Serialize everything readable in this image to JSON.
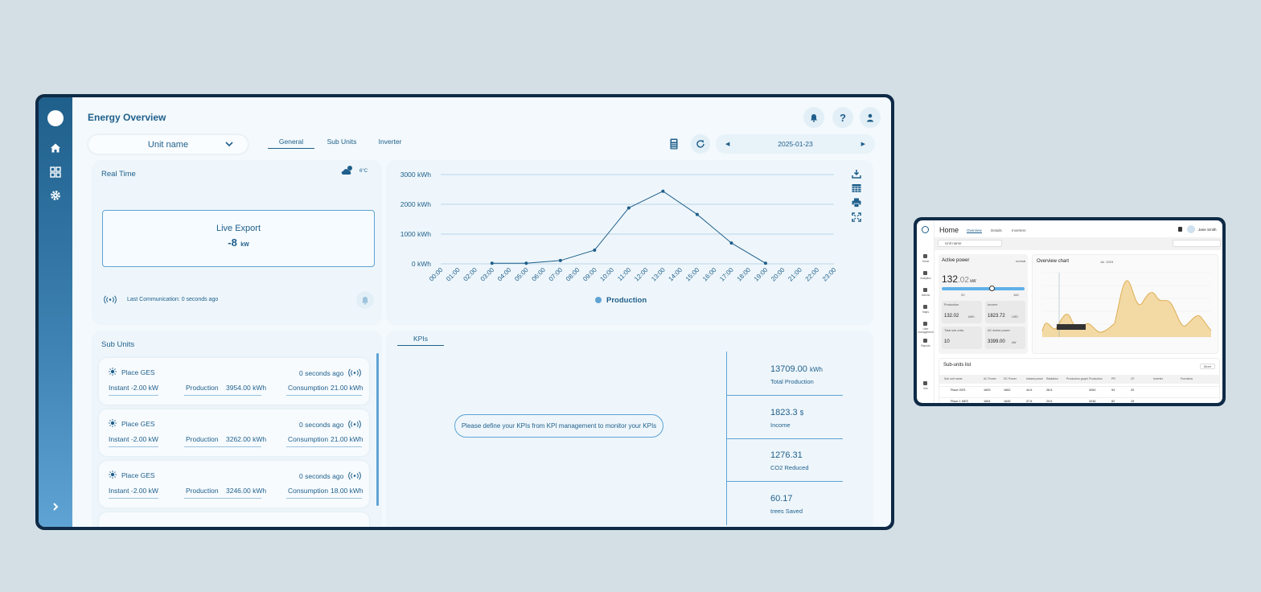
{
  "header": {
    "title": "Energy Overview",
    "unit_select": "Unit name",
    "tabs": [
      "General",
      "Sub Units",
      "Inverter"
    ],
    "date": "2025-01-23",
    "help_label": "?"
  },
  "realtime": {
    "title": "Real Time",
    "weather": "6°C",
    "live_label": "Live Export",
    "live_value": "-8",
    "live_unit": "kW",
    "last_comm": "Last Communication: 0 seconds ago"
  },
  "chart_data": {
    "type": "line",
    "x": [
      "00:00",
      "01:00",
      "02:00",
      "03:00",
      "04:00",
      "05:00",
      "06:00",
      "07:00",
      "08:00",
      "09:00",
      "10:00",
      "11:00",
      "12:00",
      "13:00",
      "14:00",
      "15:00",
      "16:00",
      "17:00",
      "18:00",
      "19:00",
      "20:00",
      "21:00",
      "22:00",
      "23:00"
    ],
    "series": [
      {
        "name": "Production",
        "values": [
          null,
          null,
          null,
          20,
          null,
          20,
          null,
          110,
          null,
          460,
          null,
          1880,
          null,
          2440,
          null,
          1660,
          null,
          700,
          null,
          20,
          null,
          null,
          null,
          null
        ]
      }
    ],
    "yticks": [
      "0 kWh",
      "1000 kWh",
      "2000 kWh",
      "3000 kWh"
    ],
    "ylim": [
      0,
      3000
    ],
    "color": "#1f5f8b",
    "legend": "bottom-center"
  },
  "sub_units": {
    "title": "Sub Units",
    "items": [
      {
        "name": "Place GES",
        "time": "0 seconds ago",
        "instant": "Instant -2.00 kW",
        "production_label": "Production",
        "production": "3954.00 kWh",
        "consumption_label": "Consumption",
        "consumption": "21.00 kWh"
      },
      {
        "name": "Place GES",
        "time": "0 seconds ago",
        "instant": "Instant -2.00 kW",
        "production_label": "Production",
        "production": "3262.00 kWh",
        "consumption_label": "Consumption",
        "consumption": "21.00 kWh"
      },
      {
        "name": "Place GES",
        "time": "0 seconds ago",
        "instant": "Instant -2.00 kW",
        "production_label": "Production",
        "production": "3246.00 kWh",
        "consumption_label": "Consumption",
        "consumption": "18.00 kWh"
      }
    ]
  },
  "kpis": {
    "tab": "KPIs",
    "message": "Please define your KPIs from KPI management to monitor your KPIs",
    "stats": [
      {
        "value": "13709.00",
        "unit": "kWh",
        "label": "Total Production"
      },
      {
        "value": "1823.3",
        "unit": "$",
        "label": "Income"
      },
      {
        "value": "1276.31",
        "unit": "",
        "label": "CO2 Reduced"
      },
      {
        "value": "60.17",
        "unit": "",
        "label": "trees Saved"
      }
    ]
  },
  "mini": {
    "title": "Home",
    "tabs": [
      "Overview",
      "Details",
      "Inverters"
    ],
    "user": "Jane Smith",
    "unit_select": "Unit name",
    "sidebar": [
      "Home",
      "Analytics",
      "Alarms",
      "Maps",
      "User management",
      "Reports",
      "Info"
    ],
    "active_power": {
      "label": "Active power",
      "value": "132",
      "decimals": ".02",
      "unit": "kW",
      "status": "normal",
      "scale_min": "20",
      "scale_max": "160"
    },
    "tiles": [
      {
        "label": "Production",
        "value": "132.02",
        "unit": "kWh"
      },
      {
        "label": "Income",
        "value": "1823.72",
        "unit": "USD"
      },
      {
        "label": "Total sub units",
        "value": "10",
        "unit": ""
      },
      {
        "label": "AC Active power",
        "value": "3399.00",
        "unit": "kW"
      }
    ],
    "chart_title": "Overview chart",
    "chart_legend": "Jul. 2023",
    "list_title": "Sub-units list",
    "list_columns": [
      "Sub unit name",
      "AC Power",
      "DC Power",
      "Instant power",
      "Radiation",
      "Production graph",
      "Production",
      "PR",
      "CF",
      "Inverter",
      "Functions"
    ],
    "rows": [
      {
        "name": "Place GES",
        "ac": "1693",
        "dc": "1662",
        "inst": "44.6",
        "rad": "28.6",
        "prod": "3260",
        "pr": "94",
        "cf": "20"
      },
      {
        "name": "Place 1 MES",
        "ac": "1654",
        "dc": "1645",
        "inst": "37.8",
        "rad": "29.6",
        "prod": "3246",
        "pr": "82",
        "cf": "19"
      }
    ],
    "more_label": "More"
  }
}
